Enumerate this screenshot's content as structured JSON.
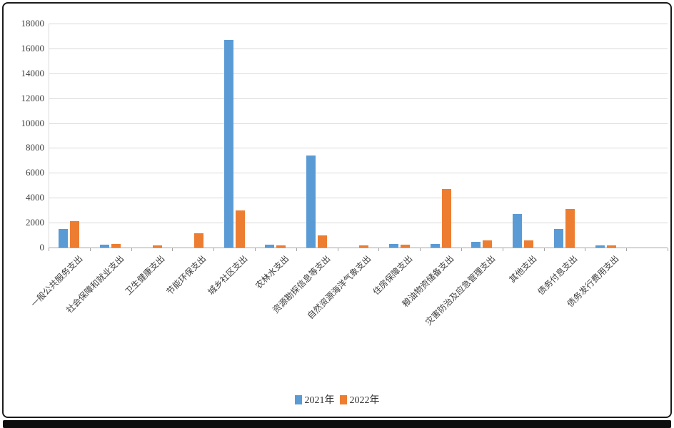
{
  "frame": {
    "border_color": "#1b1b1b",
    "bottom_bar_color": "#0d0d0d"
  },
  "chart_data": {
    "type": "bar",
    "title": "",
    "xlabel": "",
    "ylabel": "",
    "categories": [
      "一般公共服务支出",
      "社会保障和就业支出",
      "卫生健康支出",
      "节能环保支出",
      "城乡社区支出",
      "农林水支出",
      "资源勘探信息等支出",
      "自然资源海洋气象支出",
      "住房保障支出",
      "粮油物资储备支出",
      "灾害防治及应急管理支出",
      "其他支出",
      "债务付息支出",
      "债务发行费用支出"
    ],
    "series": [
      {
        "name": "2021年",
        "color": "#5B9BD5",
        "values": [
          1500,
          250,
          0,
          0,
          16700,
          230,
          7400,
          0,
          270,
          300,
          480,
          2700,
          1500,
          190
        ]
      },
      {
        "name": "2022年",
        "color": "#ED7D31",
        "values": [
          2100,
          300,
          200,
          1150,
          3000,
          200,
          950,
          150,
          250,
          4700,
          570,
          570,
          3100,
          150
        ]
      }
    ],
    "ylim": [
      0,
      18000
    ],
    "yticks": [
      0,
      2000,
      4000,
      6000,
      8000,
      10000,
      12000,
      14000,
      16000,
      18000
    ],
    "grid": true,
    "legend_position": "bottom",
    "colors": {
      "gridline": "#d9d9d9",
      "axis": "#a6a6a6",
      "tick_text": "#404040"
    }
  }
}
